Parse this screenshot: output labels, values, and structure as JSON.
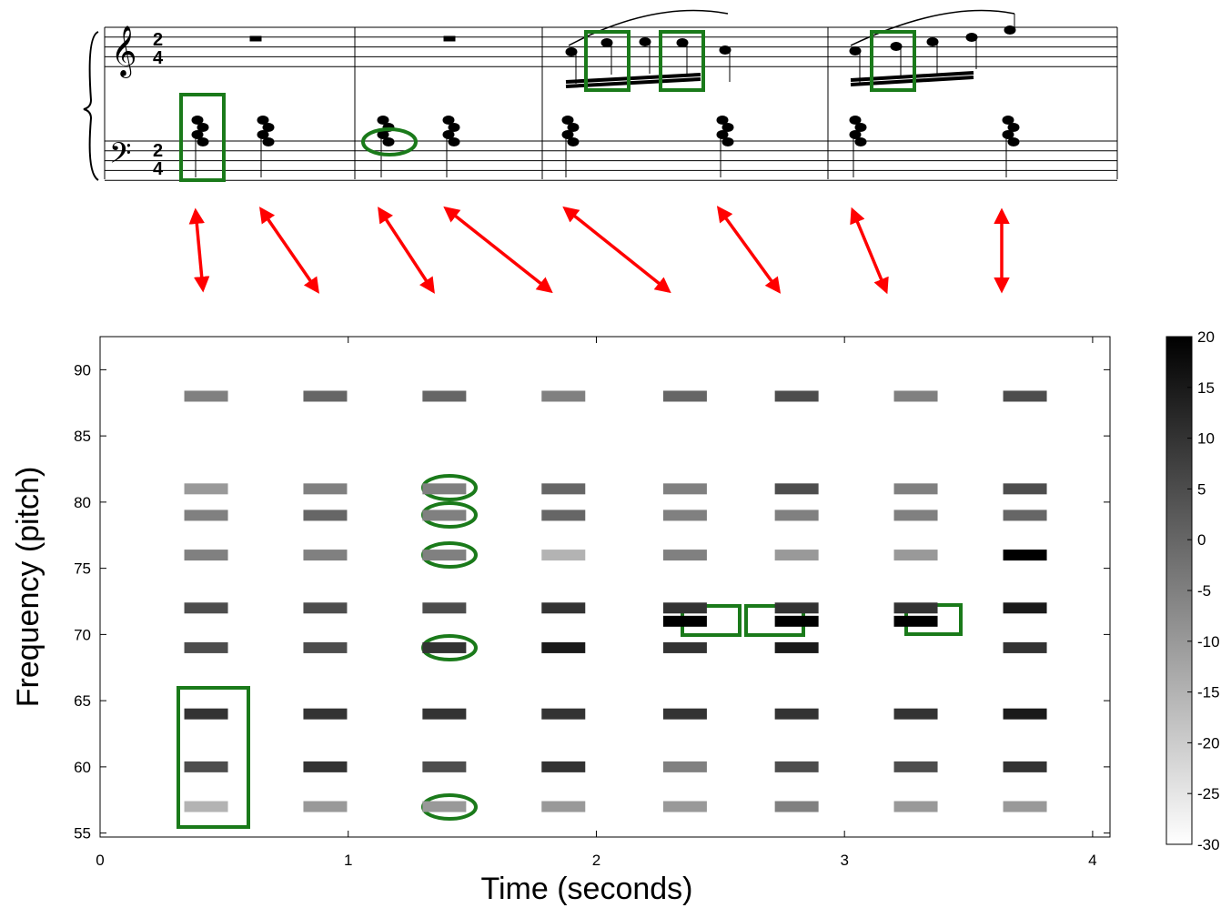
{
  "chart_data": {
    "type": "heatmap",
    "xlabel": "Time (seconds)",
    "ylabel": "Frequency (pitch)",
    "xlim": [
      0,
      4.07
    ],
    "xticks": [
      0,
      1,
      2,
      3,
      4
    ],
    "ylim": [
      54.7,
      92.5
    ],
    "yticks": [
      55,
      60,
      65,
      70,
      75,
      80,
      85,
      90
    ],
    "clim": [
      -30,
      20
    ],
    "cticks": [
      -30,
      -25,
      -20,
      -15,
      -10,
      -5,
      0,
      5,
      10,
      15,
      20
    ],
    "cmap": [
      "#ffffff",
      "#000000"
    ],
    "x": [
      0.42,
      0.9,
      1.38,
      1.86,
      2.35,
      2.8,
      3.28,
      3.72
    ],
    "rows": [
      {
        "pitch": 88,
        "values": [
          -5,
          0,
          0,
          -5,
          0,
          5,
          -5,
          5
        ]
      },
      {
        "pitch": 81,
        "values": [
          -10,
          -5,
          -5,
          0,
          -5,
          5,
          -5,
          5
        ]
      },
      {
        "pitch": 79,
        "values": [
          -5,
          0,
          -5,
          0,
          -5,
          -5,
          -5,
          0
        ]
      },
      {
        "pitch": 76,
        "values": [
          -5,
          -5,
          -5,
          -15,
          -5,
          -10,
          -10,
          20
        ]
      },
      {
        "pitch": 72,
        "values": [
          5,
          5,
          5,
          10,
          10,
          10,
          10,
          15
        ]
      },
      {
        "pitch": 71,
        "values": [
          null,
          null,
          null,
          null,
          20,
          20,
          20,
          null
        ]
      },
      {
        "pitch": 69,
        "values": [
          5,
          5,
          10,
          15,
          10,
          15,
          null,
          10
        ]
      },
      {
        "pitch": 64,
        "values": [
          10,
          10,
          10,
          10,
          10,
          10,
          10,
          15
        ]
      },
      {
        "pitch": 60,
        "values": [
          5,
          10,
          5,
          10,
          -5,
          5,
          5,
          10
        ]
      },
      {
        "pitch": 57,
        "values": [
          -15,
          -10,
          -10,
          -10,
          -10,
          -5,
          -10,
          -10
        ]
      }
    ]
  }
}
